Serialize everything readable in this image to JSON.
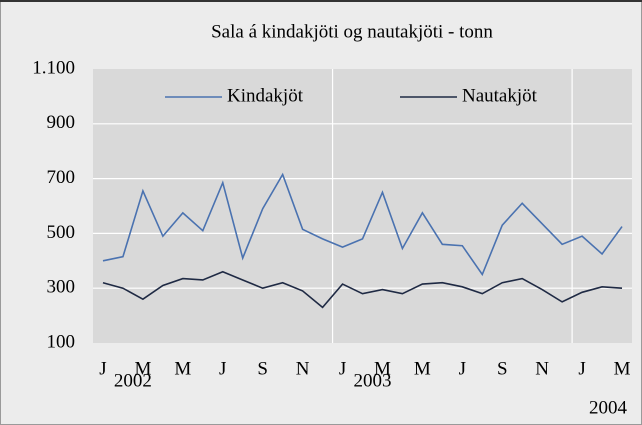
{
  "chart_data": {
    "type": "line",
    "title": "Sala á kindakjöti og nautakjöti - tonn",
    "categories": [
      "J",
      null,
      "M",
      null,
      "M",
      null,
      "J",
      null,
      "S",
      null,
      "N",
      null,
      "J",
      null,
      "M",
      null,
      "M",
      null,
      "J",
      null,
      "S",
      null,
      "N",
      null,
      "J",
      null,
      "M"
    ],
    "year_labels": [
      "2002",
      "2003",
      "2004"
    ],
    "series": [
      {
        "name": "Kindakjöt",
        "color": "#4a72b0",
        "values": [
          400,
          415,
          655,
          490,
          575,
          510,
          685,
          410,
          590,
          715,
          515,
          480,
          450,
          480,
          650,
          445,
          575,
          460,
          455,
          350,
          530,
          610,
          535,
          460,
          490,
          425,
          525
        ]
      },
      {
        "name": "Nautakjöt",
        "color": "#1f2a44",
        "values": [
          320,
          300,
          260,
          310,
          335,
          330,
          360,
          330,
          300,
          320,
          290,
          230,
          315,
          280,
          295,
          280,
          315,
          320,
          305,
          280,
          320,
          335,
          295,
          250,
          285,
          305,
          300
        ]
      }
    ],
    "ylim": [
      100,
      1100
    ],
    "yticks": [
      100,
      300,
      500,
      700,
      900,
      {
        "value": 1100,
        "label": "1.100"
      }
    ],
    "grid": true
  }
}
